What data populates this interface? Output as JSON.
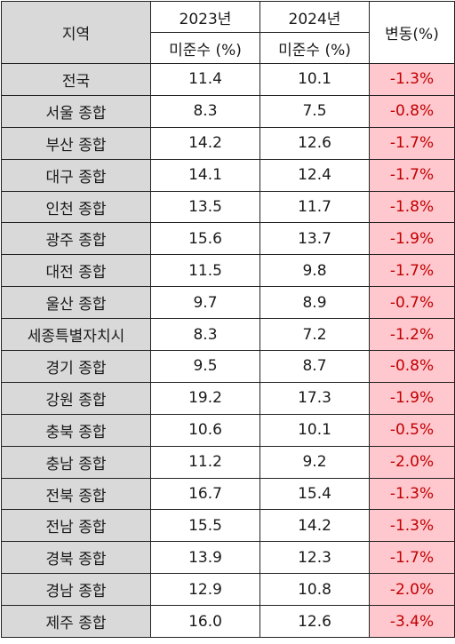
{
  "header": {
    "region": "지역",
    "year1": "2023년",
    "year2": "2024년",
    "unit1": "미준수 (%)",
    "unit2": "미준수 (%)",
    "change": "변동(%)"
  },
  "colors": {
    "header_bg": "#d9d9d9",
    "change_bg": "#ffc7ce",
    "change_text": "#c00000"
  },
  "rows": [
    {
      "region": "전국",
      "v2023": "11.4",
      "v2024": "10.1",
      "change": "-1.3%"
    },
    {
      "region": "서울 종합",
      "v2023": "8.3",
      "v2024": "7.5",
      "change": "-0.8%"
    },
    {
      "region": "부산 종합",
      "v2023": "14.2",
      "v2024": "12.6",
      "change": "-1.7%"
    },
    {
      "region": "대구 종합",
      "v2023": "14.1",
      "v2024": "12.4",
      "change": "-1.7%"
    },
    {
      "region": "인천 종합",
      "v2023": "13.5",
      "v2024": "11.7",
      "change": "-1.8%"
    },
    {
      "region": "광주 종합",
      "v2023": "15.6",
      "v2024": "13.7",
      "change": "-1.9%"
    },
    {
      "region": "대전 종합",
      "v2023": "11.5",
      "v2024": "9.8",
      "change": "-1.7%"
    },
    {
      "region": "울산 종합",
      "v2023": "9.7",
      "v2024": "8.9",
      "change": "-0.7%"
    },
    {
      "region": "세종특별자치시",
      "v2023": "8.3",
      "v2024": "7.2",
      "change": "-1.2%"
    },
    {
      "region": "경기 종합",
      "v2023": "9.5",
      "v2024": "8.7",
      "change": "-0.8%"
    },
    {
      "region": "강원 종합",
      "v2023": "19.2",
      "v2024": "17.3",
      "change": "-1.9%"
    },
    {
      "region": "충북 종합",
      "v2023": "10.6",
      "v2024": "10.1",
      "change": "-0.5%"
    },
    {
      "region": "충남 종합",
      "v2023": "11.2",
      "v2024": "9.2",
      "change": "-2.0%"
    },
    {
      "region": "전북 종합",
      "v2023": "16.7",
      "v2024": "15.4",
      "change": "-1.3%"
    },
    {
      "region": "전남 종합",
      "v2023": "15.5",
      "v2024": "14.2",
      "change": "-1.3%"
    },
    {
      "region": "경북 종합",
      "v2023": "13.9",
      "v2024": "12.3",
      "change": "-1.7%"
    },
    {
      "region": "경남 종합",
      "v2023": "12.9",
      "v2024": "10.8",
      "change": "-2.0%"
    },
    {
      "region": "제주 종합",
      "v2023": "16.0",
      "v2024": "12.6",
      "change": "-3.4%"
    }
  ]
}
